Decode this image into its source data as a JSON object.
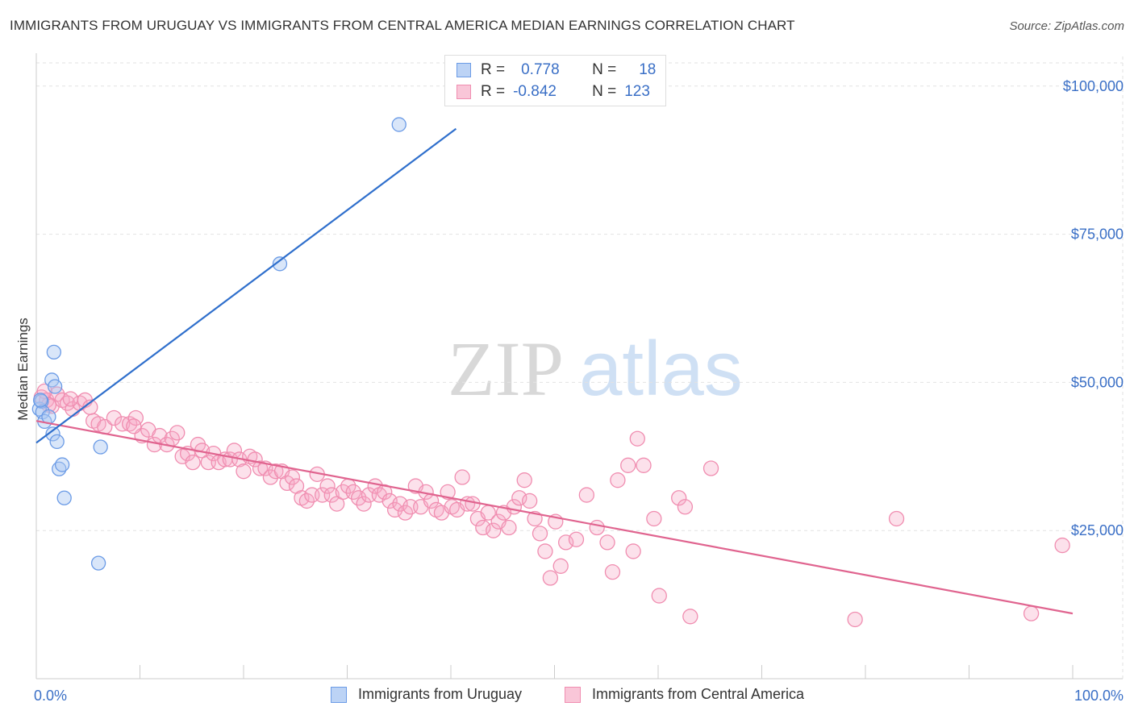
{
  "title": "IMMIGRANTS FROM URUGUAY VS IMMIGRANTS FROM CENTRAL AMERICA MEDIAN EARNINGS CORRELATION CHART",
  "source": "Source: ZipAtlas.com",
  "watermark": {
    "zip": "ZIP",
    "atlas": "atlas"
  },
  "legend": {
    "rows": [
      {
        "r_label": "R =",
        "r_value": "0.778",
        "n_label": "N =",
        "n_value": "18"
      },
      {
        "r_label": "R =",
        "r_value": "-0.842",
        "n_label": "N =",
        "n_value": "123"
      }
    ]
  },
  "chart_data": {
    "type": "scatter",
    "xlabel": "",
    "ylabel": "Median Earnings",
    "xlim": [
      0,
      100
    ],
    "ylim": [
      0,
      105000
    ],
    "x_tick_labels": [
      "0.0%",
      "100.0%"
    ],
    "y_ticks": [
      25000,
      50000,
      75000,
      100000
    ],
    "y_tick_labels": [
      "$25,000",
      "$50,000",
      "$75,000",
      "$100,000"
    ],
    "grid": true,
    "legend_position": "bottom",
    "colors": {
      "uruguay": "#6b9be6",
      "central_america": "#f08db0",
      "uruguay_line": "#2f6fcc",
      "central_america_line": "#e0648f",
      "tick_label": "#3a6fc6"
    },
    "series": [
      {
        "name": "Immigrants from Uruguay",
        "trend": {
          "x": [
            0,
            40.5
          ],
          "y": [
            39800,
            92800
          ]
        },
        "points": [
          [
            0.3,
            45500
          ],
          [
            0.5,
            46800
          ],
          [
            0.6,
            45000
          ],
          [
            0.8,
            43400
          ],
          [
            1.2,
            44200
          ],
          [
            1.5,
            50400
          ],
          [
            1.8,
            49300
          ],
          [
            1.6,
            41300
          ],
          [
            1.7,
            55100
          ],
          [
            2.0,
            40000
          ],
          [
            2.2,
            35400
          ],
          [
            2.5,
            36100
          ],
          [
            2.7,
            30500
          ],
          [
            6.2,
            39100
          ],
          [
            6.0,
            19500
          ],
          [
            23.5,
            70000
          ],
          [
            35.0,
            93500
          ],
          [
            0.4,
            47000
          ]
        ]
      },
      {
        "name": "Immigrants from Central America",
        "trend": {
          "x": [
            0,
            100
          ],
          "y": [
            43500,
            11000
          ]
        },
        "points": [
          [
            0.5,
            47500
          ],
          [
            1.0,
            47000
          ],
          [
            1.5,
            46000
          ],
          [
            2.0,
            48000
          ],
          [
            2.5,
            47000
          ],
          [
            3.0,
            46500
          ],
          [
            3.5,
            45500
          ],
          [
            4.2,
            46500
          ],
          [
            4.7,
            47000
          ],
          [
            5.5,
            43500
          ],
          [
            6.0,
            43000
          ],
          [
            6.6,
            42500
          ],
          [
            7.5,
            44000
          ],
          [
            8.3,
            43000
          ],
          [
            9.0,
            43000
          ],
          [
            9.6,
            44000
          ],
          [
            10.2,
            41000
          ],
          [
            10.8,
            42000
          ],
          [
            11.4,
            39500
          ],
          [
            11.9,
            41000
          ],
          [
            12.6,
            39500
          ],
          [
            13.1,
            40500
          ],
          [
            13.6,
            41500
          ],
          [
            14.1,
            37500
          ],
          [
            14.6,
            38000
          ],
          [
            15.1,
            36500
          ],
          [
            15.6,
            39500
          ],
          [
            16.0,
            38500
          ],
          [
            16.6,
            36500
          ],
          [
            17.1,
            38000
          ],
          [
            17.6,
            36500
          ],
          [
            18.2,
            37000
          ],
          [
            18.7,
            37000
          ],
          [
            19.1,
            38500
          ],
          [
            19.6,
            37000
          ],
          [
            20.0,
            35000
          ],
          [
            20.6,
            37500
          ],
          [
            21.1,
            37000
          ],
          [
            21.6,
            35500
          ],
          [
            22.1,
            35500
          ],
          [
            22.6,
            34000
          ],
          [
            23.1,
            35000
          ],
          [
            23.7,
            35000
          ],
          [
            24.2,
            33000
          ],
          [
            24.7,
            34000
          ],
          [
            25.1,
            32500
          ],
          [
            25.6,
            30500
          ],
          [
            26.1,
            30000
          ],
          [
            26.6,
            31000
          ],
          [
            27.1,
            34500
          ],
          [
            27.6,
            31000
          ],
          [
            28.1,
            32500
          ],
          [
            28.5,
            31000
          ],
          [
            29.0,
            29500
          ],
          [
            29.6,
            31500
          ],
          [
            30.1,
            32500
          ],
          [
            30.6,
            31500
          ],
          [
            31.1,
            30500
          ],
          [
            31.6,
            29500
          ],
          [
            32.1,
            31000
          ],
          [
            32.7,
            32500
          ],
          [
            33.1,
            31000
          ],
          [
            33.6,
            31500
          ],
          [
            34.1,
            30000
          ],
          [
            34.6,
            28500
          ],
          [
            35.1,
            29500
          ],
          [
            35.6,
            28000
          ],
          [
            36.1,
            29000
          ],
          [
            36.6,
            32500
          ],
          [
            37.1,
            29000
          ],
          [
            37.6,
            31500
          ],
          [
            38.1,
            30000
          ],
          [
            38.6,
            28500
          ],
          [
            39.1,
            28000
          ],
          [
            39.7,
            31500
          ],
          [
            40.1,
            29000
          ],
          [
            40.6,
            28500
          ],
          [
            41.1,
            34000
          ],
          [
            41.6,
            29500
          ],
          [
            42.1,
            29500
          ],
          [
            42.6,
            27000
          ],
          [
            43.1,
            25500
          ],
          [
            43.6,
            28000
          ],
          [
            44.1,
            25000
          ],
          [
            44.6,
            26500
          ],
          [
            45.1,
            28000
          ],
          [
            45.6,
            25500
          ],
          [
            46.1,
            29000
          ],
          [
            46.6,
            30500
          ],
          [
            47.1,
            33500
          ],
          [
            47.6,
            30000
          ],
          [
            48.1,
            27000
          ],
          [
            48.6,
            24500
          ],
          [
            49.1,
            21500
          ],
          [
            49.6,
            17000
          ],
          [
            50.1,
            26500
          ],
          [
            50.6,
            19000
          ],
          [
            51.1,
            23000
          ],
          [
            52.1,
            23500
          ],
          [
            53.1,
            31000
          ],
          [
            54.1,
            25500
          ],
          [
            55.1,
            23000
          ],
          [
            55.6,
            18000
          ],
          [
            56.1,
            33500
          ],
          [
            57.1,
            36000
          ],
          [
            57.6,
            21500
          ],
          [
            58.0,
            40500
          ],
          [
            58.6,
            36000
          ],
          [
            59.6,
            27000
          ],
          [
            60.1,
            14000
          ],
          [
            62.0,
            30500
          ],
          [
            62.6,
            29000
          ],
          [
            63.1,
            10500
          ],
          [
            65.1,
            35500
          ],
          [
            79.0,
            10000
          ],
          [
            83.0,
            27000
          ],
          [
            96.0,
            11000
          ],
          [
            99.0,
            22500
          ],
          [
            0.8,
            48500
          ],
          [
            3.3,
            47200
          ],
          [
            1.2,
            46200
          ],
          [
            5.2,
            45800
          ],
          [
            9.4,
            42600
          ]
        ]
      }
    ]
  }
}
